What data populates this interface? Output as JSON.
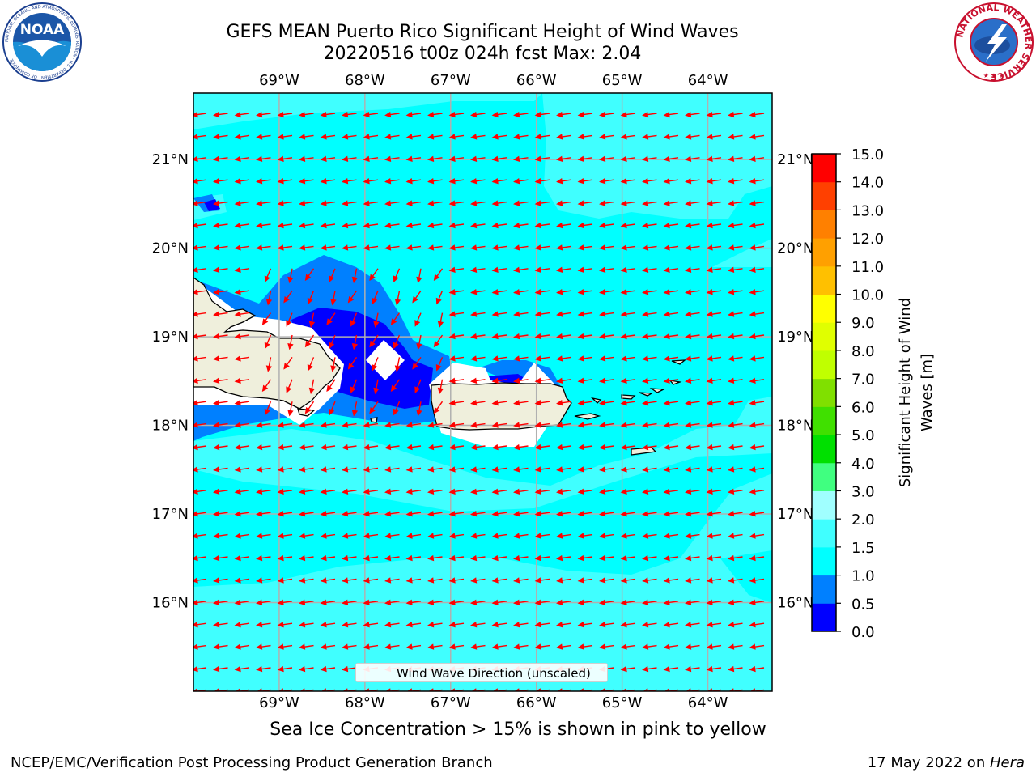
{
  "header": {
    "title_line1": "GEFS MEAN Puerto Rico Significant Height of Wind Waves",
    "title_line2": "20220516 t00z 024h fcst   Max: 2.04"
  },
  "logos": {
    "left": {
      "name": "noaa-logo",
      "text": "NOAA",
      "ring_text": "NATIONAL OCEANIC AND ATMOSPHERIC ADMINISTRATION · U.S. DEPARTMENT OF COMMERCE"
    },
    "right": {
      "name": "nws-logo",
      "ring_text": "NATIONAL WEATHER SERVICE"
    }
  },
  "map": {
    "lon_range": [
      -70.0,
      -63.25
    ],
    "lat_range": [
      15.0,
      21.75
    ],
    "lon_ticks": [
      {
        "value": -69,
        "label": "69°W"
      },
      {
        "value": -68,
        "label": "68°W"
      },
      {
        "value": -67,
        "label": "67°W"
      },
      {
        "value": -66,
        "label": "66°W"
      },
      {
        "value": -65,
        "label": "65°W"
      },
      {
        "value": -64,
        "label": "64°W"
      }
    ],
    "lat_ticks": [
      {
        "value": 21,
        "label": "21°N"
      },
      {
        "value": 20,
        "label": "20°N"
      },
      {
        "value": 19,
        "label": "19°N"
      },
      {
        "value": 18,
        "label": "18°N"
      },
      {
        "value": 17,
        "label": "17°N"
      },
      {
        "value": 16,
        "label": "16°N"
      }
    ],
    "grid": true,
    "vector_legend": "Wind Wave Direction (unscaled)",
    "colors": {
      "ocean_1_1_5": "#00ffff",
      "ocean_1_5_2": "#40ffff",
      "ocean_0_5_1": "#0080ff",
      "ocean_0_0_5": "#0000ff",
      "land": "#efefdc",
      "arrows": "#ff0000",
      "grid": "#b0b0b0"
    }
  },
  "colorbar": {
    "label": "Significant Height of Wind Waves [m]",
    "label_line1": "Significant Height of Wind",
    "label_line2": "Waves [m]",
    "levels": [
      {
        "value": "0.0",
        "color": "#0000ff"
      },
      {
        "value": "0.5",
        "color": "#0080ff"
      },
      {
        "value": "1.0",
        "color": "#00ffff"
      },
      {
        "value": "1.5",
        "color": "#40ffff"
      },
      {
        "value": "2.0",
        "color": "#a0ffff"
      },
      {
        "value": "3.0",
        "color": "#40ff80"
      },
      {
        "value": "4.0",
        "color": "#00e000"
      },
      {
        "value": "5.0",
        "color": "#40e000"
      },
      {
        "value": "6.0",
        "color": "#80e000"
      },
      {
        "value": "7.0",
        "color": "#c0ff00"
      },
      {
        "value": "8.0",
        "color": "#e0ff00"
      },
      {
        "value": "9.0",
        "color": "#ffff00"
      },
      {
        "value": "10.0",
        "color": "#ffc000"
      },
      {
        "value": "11.0",
        "color": "#ffa000"
      },
      {
        "value": "12.0",
        "color": "#ff8000"
      },
      {
        "value": "13.0",
        "color": "#ff4000"
      },
      {
        "value": "14.0",
        "color": "#ff0000"
      },
      {
        "value": "15.0",
        "color": ""
      }
    ]
  },
  "notes": {
    "sea_ice": "Sea Ice Concentration > 15% is shown in pink to yellow"
  },
  "footer": {
    "left": "NCEP/EMC/Verification Post Processing Product Generation Branch",
    "right_prefix": "17 May 2022 on ",
    "right_host": "Hera"
  }
}
